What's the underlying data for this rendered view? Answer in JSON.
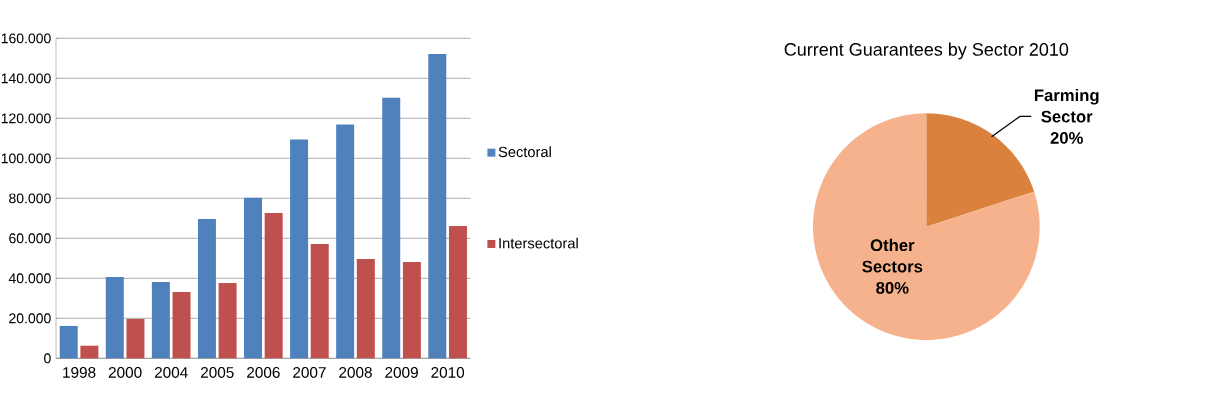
{
  "chart_data": [
    {
      "type": "bar",
      "categories": [
        "1998",
        "2000",
        "2004",
        "2005",
        "2006",
        "2007",
        "2008",
        "2009",
        "2010"
      ],
      "series": [
        {
          "name": "Sectoral",
          "color": "#4f81bd",
          "values": [
            16200,
            40600,
            38100,
            69600,
            80300,
            109400,
            116900,
            130300,
            152100
          ]
        },
        {
          "name": "Intersectoral",
          "color": "#c0504d",
          "values": [
            6300,
            19700,
            33100,
            37600,
            72700,
            57100,
            49600,
            48100,
            66100
          ]
        }
      ],
      "ylim": [
        0,
        160000
      ],
      "yticks": [
        0,
        {
          "value": 20000,
          "label": "20.000"
        },
        {
          "value": 40000,
          "label": "40.000"
        },
        {
          "value": 60000,
          "label": "60.000"
        },
        {
          "value": 80000,
          "label": "80.000"
        },
        {
          "value": 100000,
          "label": "100.000"
        },
        {
          "value": 120000,
          "label": "120.000"
        },
        {
          "value": 140000,
          "label": "140.000"
        },
        {
          "value": 160000,
          "label": "160.000"
        }
      ],
      "grid": "y",
      "legend": "right"
    },
    {
      "type": "pie",
      "title": "Current Guarantees by Sector 2010",
      "categories": [
        "Farming Sector",
        "Other Sectors"
      ],
      "values": [
        20,
        80
      ],
      "colors": [
        "#d9813d",
        "#f5b28c"
      ],
      "value_labels": [
        "20%",
        "80%"
      ]
    }
  ]
}
